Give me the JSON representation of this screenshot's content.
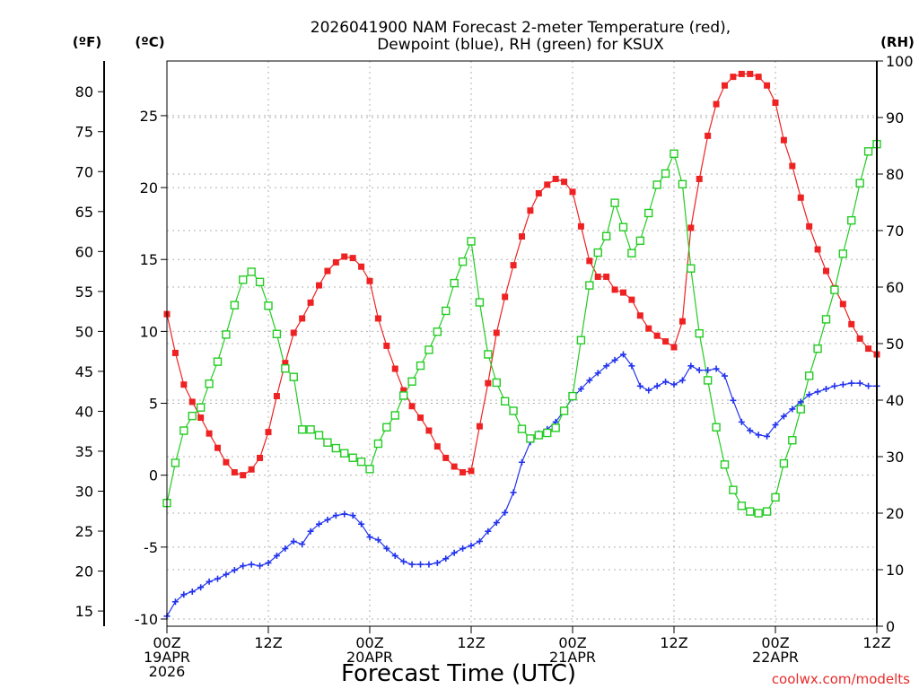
{
  "chart_data": {
    "type": "line",
    "title": "2026041900 NAM Forecast 2-meter Temperature (red),",
    "title_line2": "Dewpoint (blue), RH (green) for KSUX",
    "xlabel": "Forecast Time (UTC)",
    "credit": "coolwx.com/modelts",
    "unit_labels": {
      "fahrenheit": "(ºF)",
      "celsius": "(ºC)",
      "rh": "(RH)"
    },
    "x_ticks": [
      {
        "hour": 0,
        "lines": [
          "00Z",
          "19APR",
          "2026"
        ]
      },
      {
        "hour": 12,
        "lines": [
          "12Z"
        ]
      },
      {
        "hour": 24,
        "lines": [
          "00Z",
          "20APR"
        ]
      },
      {
        "hour": 36,
        "lines": [
          "12Z"
        ]
      },
      {
        "hour": 48,
        "lines": [
          "00Z",
          "21APR"
        ]
      },
      {
        "hour": 60,
        "lines": [
          "12Z"
        ]
      },
      {
        "hour": 72,
        "lines": [
          "00Z",
          "22APR"
        ]
      },
      {
        "hour": 84,
        "lines": [
          "12Z"
        ]
      }
    ],
    "xlim": [
      0,
      84
    ],
    "ylim_celsius": [
      -10.5,
      28.8
    ],
    "ylim_rh": [
      0,
      100
    ],
    "celsius_ticks": [
      -10,
      -5,
      0,
      5,
      10,
      15,
      20,
      25
    ],
    "fahrenheit_ticks": [
      15,
      20,
      25,
      30,
      35,
      40,
      45,
      50,
      55,
      60,
      65,
      70,
      75,
      80
    ],
    "rh_ticks": [
      0,
      10,
      20,
      30,
      40,
      50,
      60,
      70,
      80,
      90,
      100
    ],
    "grid": true,
    "series": [
      {
        "key": "temperature",
        "axis": "celsius",
        "color": "#ee2222",
        "marker": "filled-square",
        "points": [
          [
            0,
            11.2
          ],
          [
            1,
            8.5
          ],
          [
            2,
            6.3
          ],
          [
            3,
            5.1
          ],
          [
            4,
            4.0
          ],
          [
            5,
            2.9
          ],
          [
            6,
            1.9
          ],
          [
            7,
            0.9
          ],
          [
            8,
            0.2
          ],
          [
            9,
            0.0
          ],
          [
            10,
            0.4
          ],
          [
            11,
            1.2
          ],
          [
            12,
            3.0
          ],
          [
            13,
            5.5
          ],
          [
            14,
            7.8
          ],
          [
            15,
            9.9
          ],
          [
            16,
            10.9
          ],
          [
            17,
            12.0
          ],
          [
            18,
            13.2
          ],
          [
            19,
            14.2
          ],
          [
            20,
            14.8
          ],
          [
            21,
            15.2
          ],
          [
            22,
            15.1
          ],
          [
            23,
            14.5
          ],
          [
            24,
            13.5
          ],
          [
            25,
            10.9
          ],
          [
            26,
            9.0
          ],
          [
            27,
            7.4
          ],
          [
            28,
            5.9
          ],
          [
            29,
            4.8
          ],
          [
            30,
            4.0
          ],
          [
            31,
            3.1
          ],
          [
            32,
            2.0
          ],
          [
            33,
            1.2
          ],
          [
            34,
            0.6
          ],
          [
            35,
            0.2
          ],
          [
            36,
            0.3
          ],
          [
            37,
            3.4
          ],
          [
            38,
            6.4
          ],
          [
            39,
            9.9
          ],
          [
            40,
            12.4
          ],
          [
            41,
            14.6
          ],
          [
            42,
            16.6
          ],
          [
            43,
            18.4
          ],
          [
            44,
            19.6
          ],
          [
            45,
            20.2
          ],
          [
            46,
            20.6
          ],
          [
            47,
            20.4
          ],
          [
            48,
            19.7
          ],
          [
            49,
            17.3
          ],
          [
            50,
            14.9
          ],
          [
            51,
            13.8
          ],
          [
            52,
            13.8
          ],
          [
            53,
            12.9
          ],
          [
            54,
            12.7
          ],
          [
            55,
            12.2
          ],
          [
            56,
            11.1
          ],
          [
            57,
            10.2
          ],
          [
            58,
            9.7
          ],
          [
            59,
            9.3
          ],
          [
            60,
            8.9
          ],
          [
            61,
            10.7
          ],
          [
            62,
            17.2
          ],
          [
            63,
            20.6
          ],
          [
            64,
            23.6
          ],
          [
            65,
            25.8
          ],
          [
            66,
            27.1
          ],
          [
            67,
            27.7
          ],
          [
            68,
            27.9
          ],
          [
            69,
            27.9
          ],
          [
            70,
            27.7
          ],
          [
            71,
            27.1
          ],
          [
            72,
            25.9
          ],
          [
            73,
            23.3
          ],
          [
            74,
            21.5
          ],
          [
            75,
            19.3
          ],
          [
            76,
            17.3
          ],
          [
            77,
            15.7
          ],
          [
            78,
            14.2
          ],
          [
            79,
            13.0
          ],
          [
            80,
            11.9
          ],
          [
            81,
            10.5
          ],
          [
            82,
            9.5
          ],
          [
            83,
            8.8
          ],
          [
            84,
            8.4
          ]
        ]
      },
      {
        "key": "dewpoint",
        "axis": "celsius",
        "color": "#2233ee",
        "marker": "plus",
        "points": [
          [
            0,
            -9.8
          ],
          [
            1,
            -8.8
          ],
          [
            2,
            -8.3
          ],
          [
            3,
            -8.1
          ],
          [
            4,
            -7.8
          ],
          [
            5,
            -7.4
          ],
          [
            6,
            -7.2
          ],
          [
            7,
            -6.9
          ],
          [
            8,
            -6.6
          ],
          [
            9,
            -6.3
          ],
          [
            10,
            -6.2
          ],
          [
            11,
            -6.3
          ],
          [
            12,
            -6.1
          ],
          [
            13,
            -5.6
          ],
          [
            14,
            -5.1
          ],
          [
            15,
            -4.6
          ],
          [
            16,
            -4.8
          ],
          [
            17,
            -3.9
          ],
          [
            18,
            -3.4
          ],
          [
            19,
            -3.1
          ],
          [
            20,
            -2.8
          ],
          [
            21,
            -2.7
          ],
          [
            22,
            -2.8
          ],
          [
            23,
            -3.4
          ],
          [
            24,
            -4.3
          ],
          [
            25,
            -4.5
          ],
          [
            26,
            -5.1
          ],
          [
            27,
            -5.6
          ],
          [
            28,
            -6.0
          ],
          [
            29,
            -6.2
          ],
          [
            30,
            -6.2
          ],
          [
            31,
            -6.2
          ],
          [
            32,
            -6.1
          ],
          [
            33,
            -5.8
          ],
          [
            34,
            -5.4
          ],
          [
            35,
            -5.1
          ],
          [
            36,
            -4.9
          ],
          [
            37,
            -4.6
          ],
          [
            38,
            -3.9
          ],
          [
            39,
            -3.3
          ],
          [
            40,
            -2.6
          ],
          [
            41,
            -1.2
          ],
          [
            42,
            0.9
          ],
          [
            43,
            2.3
          ],
          [
            44,
            2.9
          ],
          [
            45,
            3.2
          ],
          [
            46,
            3.7
          ],
          [
            47,
            4.5
          ],
          [
            48,
            5.4
          ],
          [
            49,
            6.0
          ],
          [
            50,
            6.6
          ],
          [
            51,
            7.1
          ],
          [
            52,
            7.6
          ],
          [
            53,
            8.0
          ],
          [
            54,
            8.4
          ],
          [
            55,
            7.6
          ],
          [
            56,
            6.2
          ],
          [
            57,
            5.9
          ],
          [
            58,
            6.2
          ],
          [
            59,
            6.5
          ],
          [
            60,
            6.3
          ],
          [
            61,
            6.6
          ],
          [
            62,
            7.6
          ],
          [
            63,
            7.3
          ],
          [
            64,
            7.3
          ],
          [
            65,
            7.4
          ],
          [
            66,
            6.9
          ],
          [
            67,
            5.2
          ],
          [
            68,
            3.7
          ],
          [
            69,
            3.1
          ],
          [
            70,
            2.8
          ],
          [
            71,
            2.7
          ],
          [
            72,
            3.5
          ],
          [
            73,
            4.1
          ],
          [
            74,
            4.6
          ],
          [
            75,
            5.1
          ],
          [
            76,
            5.6
          ],
          [
            77,
            5.8
          ],
          [
            78,
            6.0
          ],
          [
            79,
            6.2
          ],
          [
            80,
            6.3
          ],
          [
            81,
            6.4
          ],
          [
            82,
            6.4
          ],
          [
            83,
            6.2
          ],
          [
            84,
            6.2
          ]
        ]
      },
      {
        "key": "rh",
        "axis": "rh",
        "color": "#22cc22",
        "marker": "open-square",
        "points": [
          [
            0,
            21.8
          ],
          [
            1,
            28.9
          ],
          [
            2,
            34.6
          ],
          [
            3,
            37.2
          ],
          [
            4,
            38.7
          ],
          [
            5,
            42.9
          ],
          [
            6,
            46.8
          ],
          [
            7,
            51.6
          ],
          [
            8,
            56.8
          ],
          [
            9,
            61.3
          ],
          [
            10,
            62.7
          ],
          [
            11,
            60.9
          ],
          [
            12,
            56.7
          ],
          [
            13,
            51.7
          ],
          [
            14,
            45.6
          ],
          [
            15,
            44.1
          ],
          [
            16,
            34.8
          ],
          [
            17,
            34.8
          ],
          [
            18,
            33.8
          ],
          [
            19,
            32.5
          ],
          [
            20,
            31.5
          ],
          [
            21,
            30.6
          ],
          [
            22,
            29.8
          ],
          [
            23,
            29.1
          ],
          [
            24,
            27.8
          ],
          [
            25,
            32.3
          ],
          [
            26,
            35.2
          ],
          [
            27,
            37.3
          ],
          [
            28,
            40.8
          ],
          [
            29,
            43.3
          ],
          [
            30,
            46.1
          ],
          [
            31,
            48.9
          ],
          [
            32,
            52.1
          ],
          [
            33,
            55.8
          ],
          [
            34,
            60.7
          ],
          [
            35,
            64.5
          ],
          [
            36,
            68.1
          ],
          [
            37,
            57.3
          ],
          [
            38,
            48.1
          ],
          [
            39,
            43.1
          ],
          [
            40,
            39.8
          ],
          [
            41,
            38.1
          ],
          [
            42,
            34.9
          ],
          [
            43,
            33.2
          ],
          [
            44,
            33.8
          ],
          [
            45,
            34.2
          ],
          [
            46,
            35.1
          ],
          [
            47,
            38.1
          ],
          [
            48,
            40.7
          ],
          [
            49,
            50.6
          ],
          [
            50,
            60.3
          ],
          [
            51,
            66.1
          ],
          [
            52,
            69.0
          ],
          [
            53,
            74.9
          ],
          [
            54,
            70.6
          ],
          [
            55,
            66.0
          ],
          [
            56,
            68.2
          ],
          [
            57,
            73.1
          ],
          [
            58,
            78.1
          ],
          [
            59,
            80.1
          ],
          [
            60,
            83.6
          ],
          [
            61,
            78.2
          ],
          [
            62,
            63.3
          ],
          [
            63,
            51.8
          ],
          [
            64,
            43.5
          ],
          [
            65,
            35.2
          ],
          [
            66,
            28.6
          ],
          [
            67,
            24.1
          ],
          [
            68,
            21.3
          ],
          [
            69,
            20.3
          ],
          [
            70,
            20.0
          ],
          [
            71,
            20.3
          ],
          [
            72,
            22.8
          ],
          [
            73,
            28.8
          ],
          [
            74,
            32.9
          ],
          [
            75,
            38.4
          ],
          [
            76,
            44.3
          ],
          [
            77,
            49.1
          ],
          [
            78,
            54.3
          ],
          [
            79,
            59.5
          ],
          [
            80,
            65.9
          ],
          [
            81,
            71.8
          ],
          [
            82,
            78.4
          ],
          [
            83,
            84.0
          ],
          [
            84,
            85.3
          ]
        ]
      }
    ]
  }
}
